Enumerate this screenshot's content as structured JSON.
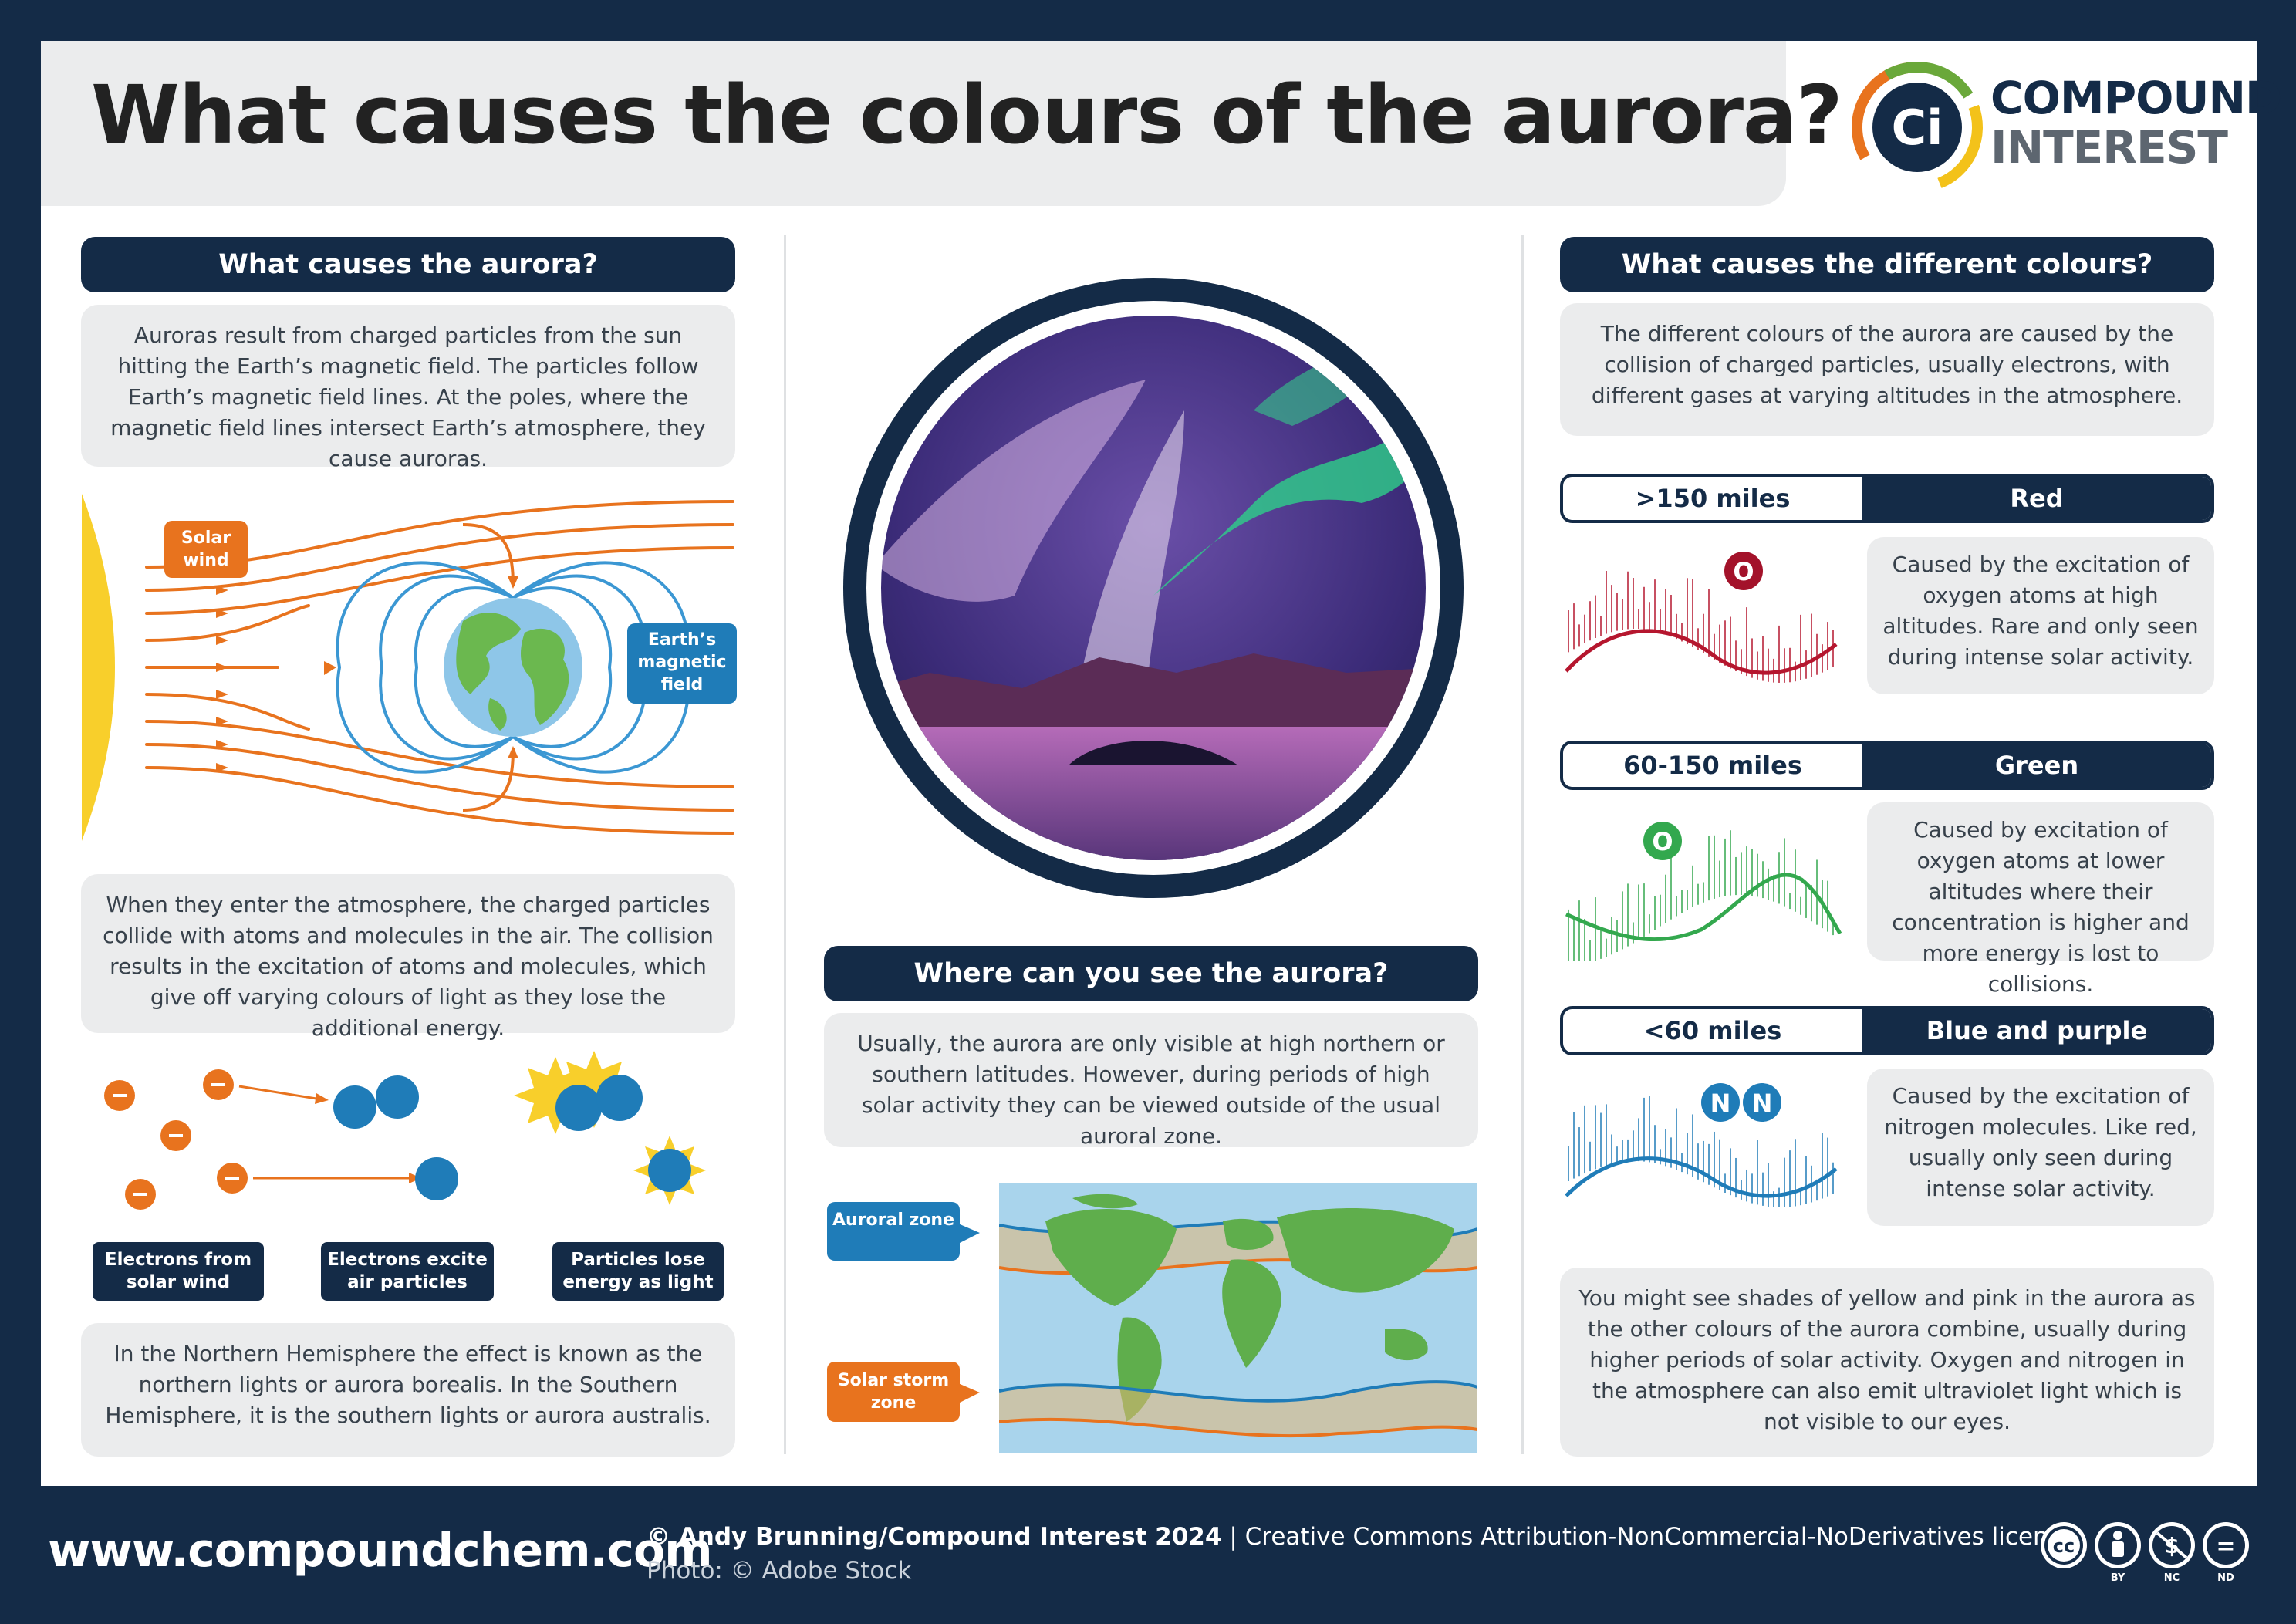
{
  "title": "What causes the colours of the aurora?",
  "logo": {
    "mark": "Ci",
    "line1": "COMPOUND",
    "line2": "INTEREST"
  },
  "left": {
    "header": "What causes the aurora?",
    "intro": "Auroras result from charged particles from the sun hitting the Earth’s magnetic field. The particles follow Earth’s magnetic field lines. At the poles, where the magnetic field lines intersect Earth’s atmosphere, they cause auroras.",
    "solar_wind_label": "Solar wind",
    "field_label": "Earth’s magnetic field",
    "collision_text": "When they enter the atmosphere, the charged particles collide with atoms and molecules in the air. The collision results in the excitation of atoms and molecules, which give off varying colours of light as they lose the additional energy.",
    "step1": "Electrons from solar wind",
    "step2": "Electrons excite air particles",
    "step3": "Particles lose energy as light",
    "electron_symbol": "−",
    "hemisphere_text": "In the Northern Hemisphere the effect is known as the northern lights or aurora borealis. In the Southern Hemisphere, it is the southern lights or aurora australis."
  },
  "middle": {
    "header": "Where can you see the aurora?",
    "text": "Usually, the aurora are only visible at high northern or southern latitudes. However, during periods of high solar activity they can be viewed outside of the usual auroral zone.",
    "auroral_zone": "Auroral zone",
    "storm_zone": "Solar storm zone"
  },
  "right": {
    "header": "What causes the different colours?",
    "intro": "The different colours of the aurora are caused by the collision of charged particles, usually electrons, with different gases at varying altitudes in the atmosphere.",
    "bands": [
      {
        "altitude": ">150 miles",
        "colour": "Red",
        "atom": "O",
        "text": "Caused by the excitation of oxygen atoms at high altitudes. Rare and only seen during intense solar activity."
      },
      {
        "altitude": "60-150 miles",
        "colour": "Green",
        "atom": "O",
        "text": "Caused by excitation of oxygen atoms at lower altitudes where their concentration is higher and more energy is lost to collisions."
      },
      {
        "altitude": "<60 miles",
        "colour": "Blue and purple",
        "atom": "N",
        "text": "Caused by the excitation of nitrogen molecules. Like red, usually only seen during intense solar activity."
      }
    ],
    "outro": "You might see shades of yellow and pink in the aurora as the other colours of the aurora combine, usually during higher periods of solar activity. Oxygen and nitrogen in the atmosphere can also emit ultraviolet light which is not visible to our eyes."
  },
  "footer": {
    "url": "www.compoundchem.com",
    "credit_bold": "© Andy Brunning/Compound Interest 2024",
    "separator": "|",
    "licence": "Creative Commons Attribution-NonCommercial-NoDerivatives licence.",
    "photo": "Photo: © Adobe Stock",
    "cc_marks": {
      "cc": "cc",
      "by": "BY",
      "nc": "NC",
      "nd": "ND",
      "nc_glyph": "$",
      "nd_glyph": "="
    }
  },
  "colors": {
    "navy": "#142b47",
    "orange": "#e8731e",
    "blue": "#1f7cb8",
    "red": "#b5162e",
    "green": "#33a84e",
    "sun": "#f8cf2b",
    "panel_grey": "#ebeced"
  }
}
